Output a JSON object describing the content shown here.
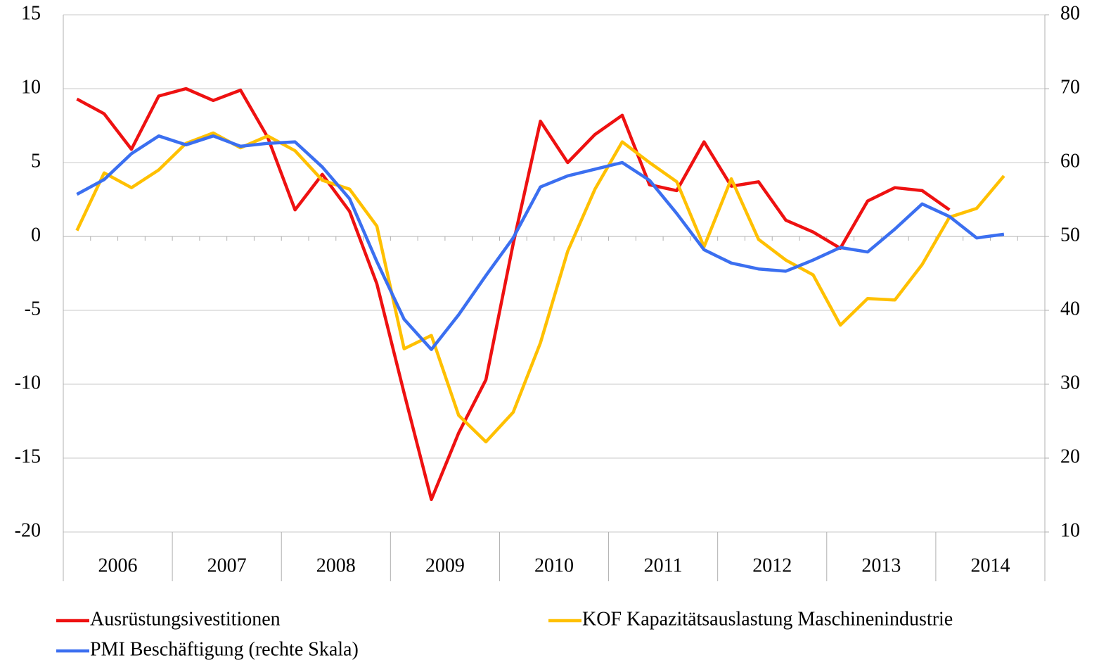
{
  "chart_data": {
    "type": "line",
    "categories": [
      null,
      null,
      null,
      null,
      null,
      null,
      null,
      null,
      null,
      null,
      null,
      null,
      null,
      null,
      null,
      null,
      null,
      null,
      null,
      null,
      null,
      null,
      null,
      null,
      null,
      null,
      null,
      null,
      null,
      null,
      null,
      null,
      null,
      null,
      null,
      null
    ],
    "years": [
      "2006",
      "2007",
      "2008",
      "2009",
      "2010",
      "2011",
      "2012",
      "2013",
      "2014"
    ],
    "ylim": [
      -20,
      15
    ],
    "yticks": [
      -20,
      -15,
      -10,
      -5,
      0,
      5,
      10,
      15
    ],
    "y2lim": [
      10,
      80
    ],
    "y2ticks": [
      10,
      20,
      30,
      40,
      50,
      60,
      70,
      80
    ],
    "grid": true,
    "legend": "bottom",
    "series": [
      {
        "name": "Ausrüstungsivestitionen",
        "color": "#ee1111",
        "values": [
          9.3,
          8.3,
          5.9,
          9.5,
          10.0,
          9.2,
          9.9,
          6.7,
          1.8,
          4.2,
          1.7,
          -3.2,
          -10.6,
          -17.8,
          -13.3,
          -9.7,
          -0.5,
          7.8,
          5.0,
          6.9,
          8.2,
          3.5,
          3.1,
          6.4,
          3.4,
          3.7,
          1.1,
          0.3,
          -0.8,
          2.4,
          3.3,
          3.1,
          1.8,
          null,
          null,
          null
        ]
      },
      {
        "name": "KOF Kapazitätsauslastung Maschinenindustrie",
        "color": "#ffc000",
        "values": [
          0.4,
          4.3,
          3.3,
          4.5,
          6.3,
          7.0,
          6.0,
          6.8,
          5.8,
          3.8,
          3.2,
          0.7,
          -7.6,
          -6.7,
          -12.1,
          -13.9,
          -11.9,
          -7.2,
          -1.0,
          3.2,
          6.4,
          5.0,
          3.7,
          -0.7,
          3.9,
          -0.2,
          -1.6,
          -2.6,
          -6.0,
          -4.2,
          -4.3,
          -1.9,
          1.3,
          1.9,
          4.1,
          null
        ]
      },
      {
        "name": "PMI Beschäftigung (rechte Skala)",
        "color": "#3b6ff0",
        "axis": "y2",
        "values": [
          55.7,
          57.7,
          61.2,
          63.6,
          62.4,
          63.6,
          62.2,
          62.6,
          62.8,
          59.4,
          55.1,
          46.6,
          38.8,
          34.7,
          39.4,
          44.7,
          49.8,
          56.7,
          58.2,
          59.1,
          60.0,
          57.6,
          53.1,
          48.2,
          46.4,
          45.6,
          45.3,
          46.8,
          48.5,
          47.9,
          51.0,
          54.4,
          52.7,
          49.8,
          50.3,
          null
        ]
      }
    ]
  }
}
